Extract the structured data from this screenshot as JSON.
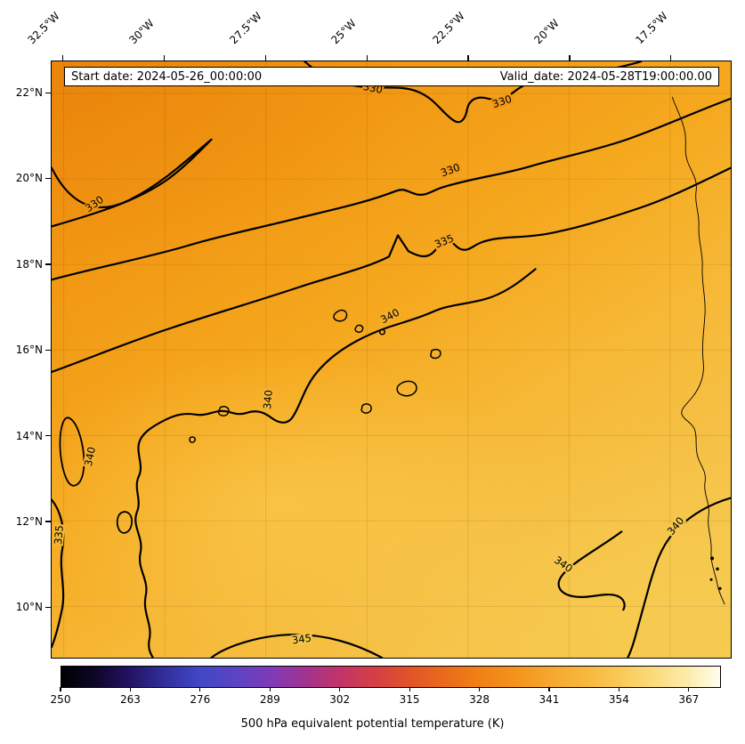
{
  "figure": {
    "header": {
      "start_label": "Start date: 2024-05-26_00:00:00",
      "valid_label": "Valid_date: 2024-05-28T19:00:00.00"
    }
  },
  "chart_data": {
    "type": "heatmap",
    "subtype": "filled-contour-weather-map",
    "field": "500 hPa equivalent potential temperature",
    "units": "K",
    "start_date": "2024-05-26_00:00:00",
    "valid_date": "2024-05-28T19:00:00.00",
    "x_axis": {
      "side": "top",
      "tick_labels": [
        "32.5°W",
        "30°W",
        "27.5°W",
        "25°W",
        "22.5°W",
        "20°W",
        "17.5°W"
      ],
      "tick_values": [
        -32.5,
        -30,
        -27.5,
        -25,
        -22.5,
        -20,
        -17.5
      ],
      "range": [
        -32.8,
        -16.0
      ],
      "rotation_deg": 45
    },
    "y_axis": {
      "side": "left",
      "tick_labels": [
        "22°N",
        "20°N",
        "18°N",
        "16°N",
        "14°N",
        "12°N",
        "10°N"
      ],
      "tick_values": [
        22,
        20,
        18,
        16,
        14,
        12,
        10
      ],
      "range": [
        8.8,
        22.75
      ]
    },
    "grid": true,
    "contours": {
      "levels": [
        330,
        335,
        340,
        345
      ],
      "line_color": "#000000",
      "labels": {
        "c330": "330",
        "c335": "335",
        "c340": "340",
        "c345": "345"
      },
      "visible_field_range_estimate": [
        328,
        348
      ]
    },
    "field_gradient": {
      "angle_deg": 148,
      "stops": [
        {
          "pos": 0.0,
          "color": "#ee8c0e"
        },
        {
          "pos": 0.25,
          "color": "#f29a15"
        },
        {
          "pos": 0.45,
          "color": "#f5a91f"
        },
        {
          "pos": 0.62,
          "color": "#f6b836"
        },
        {
          "pos": 0.8,
          "color": "#f5c247"
        },
        {
          "pos": 1.0,
          "color": "#f4c94f"
        }
      ]
    },
    "colorbar": {
      "orientation": "horizontal",
      "label": "500 hPa equivalent potential temperature (K)",
      "ticks": [
        250,
        263,
        276,
        289,
        302,
        315,
        328,
        341,
        354,
        367
      ],
      "vmin": 250,
      "vmax": 373,
      "stops": [
        {
          "pos": 0.0,
          "color": "#000000"
        },
        {
          "pos": 0.05,
          "color": "#0d0628"
        },
        {
          "pos": 0.106,
          "color": "#231465"
        },
        {
          "pos": 0.16,
          "color": "#33309f"
        },
        {
          "pos": 0.211,
          "color": "#4148c6"
        },
        {
          "pos": 0.26,
          "color": "#5a44c4"
        },
        {
          "pos": 0.317,
          "color": "#7d3bb8"
        },
        {
          "pos": 0.37,
          "color": "#a1338f"
        },
        {
          "pos": 0.423,
          "color": "#c23468"
        },
        {
          "pos": 0.48,
          "color": "#d64043"
        },
        {
          "pos": 0.528,
          "color": "#e05428"
        },
        {
          "pos": 0.58,
          "color": "#e96a1c"
        },
        {
          "pos": 0.634,
          "color": "#f08114"
        },
        {
          "pos": 0.69,
          "color": "#f3941c"
        },
        {
          "pos": 0.74,
          "color": "#f6a62c"
        },
        {
          "pos": 0.8,
          "color": "#f8b93f"
        },
        {
          "pos": 0.846,
          "color": "#f9c854"
        },
        {
          "pos": 0.9,
          "color": "#fbdb7c"
        },
        {
          "pos": 0.951,
          "color": "#fcecab"
        },
        {
          "pos": 1.0,
          "color": "#fffdf0"
        }
      ]
    }
  }
}
